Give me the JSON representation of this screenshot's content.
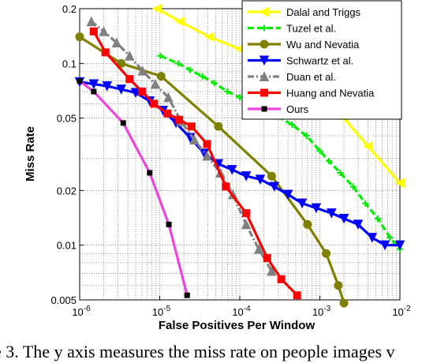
{
  "chart_data": {
    "type": "line",
    "xlabel": "False Positives Per Window",
    "ylabel": "Miss Rate",
    "x_scale": "log",
    "y_scale": "log",
    "xlim": [
      1e-06,
      0.01
    ],
    "ylim": [
      0.005,
      0.2
    ],
    "x_ticks": [
      {
        "value": 1e-06,
        "base": "10",
        "exp": "-6"
      },
      {
        "value": 1e-05,
        "base": "10",
        "exp": "-5"
      },
      {
        "value": 0.0001,
        "base": "10",
        "exp": "-4"
      },
      {
        "value": 0.001,
        "base": "10",
        "exp": "-3"
      },
      {
        "value": 0.01,
        "base": "10",
        "exp": "-2"
      }
    ],
    "y_ticks": [
      {
        "value": 0.2,
        "label": "0.2"
      },
      {
        "value": 0.1,
        "label": "0.1"
      },
      {
        "value": 0.05,
        "label": "0.05"
      },
      {
        "value": 0.02,
        "label": "0.02"
      },
      {
        "value": 0.01,
        "label": "0.01"
      },
      {
        "value": 0.005,
        "label": "0.005"
      }
    ],
    "grid": true,
    "legend_position": "top-right",
    "series": [
      {
        "name": "Dalal and Triggs",
        "color": "#ffff00",
        "marker": "triangle-left",
        "dash": "solid",
        "x": [
          9.3e-06,
          1.8e-05,
          4.2e-05,
          0.0001,
          0.0002,
          0.00045,
          0.001,
          0.002,
          0.004,
          0.01
        ],
        "y": [
          0.2,
          0.17,
          0.14,
          0.12,
          0.105,
          0.09,
          0.07,
          0.05,
          0.035,
          0.022
        ]
      },
      {
        "name": "Tuzel et al.",
        "color": "#00ee00",
        "marker": "plus",
        "dash": "dash",
        "x": [
          1.02e-05,
          1.7e-05,
          2.4e-05,
          3.4e-05,
          4.8e-05,
          7e-05,
          0.0001,
          0.00014,
          0.0002,
          0.0003,
          0.00045,
          0.00068,
          0.001,
          0.0013,
          0.0018,
          0.0026,
          0.0037,
          0.0053,
          0.0075,
          0.01
        ],
        "y": [
          0.11,
          0.1,
          0.092,
          0.085,
          0.078,
          0.07,
          0.065,
          0.062,
          0.058,
          0.051,
          0.046,
          0.04,
          0.033,
          0.029,
          0.025,
          0.021,
          0.017,
          0.014,
          0.011,
          0.0095
        ]
      },
      {
        "name": "Wu and Nevatia",
        "color": "#808000",
        "marker": "circle",
        "dash": "solid",
        "x": [
          1e-06,
          3.3e-06,
          1.04e-05,
          5.4e-05,
          0.00025,
          0.0007,
          0.0012,
          0.0017,
          0.002
        ],
        "y": [
          0.14,
          0.1,
          0.085,
          0.045,
          0.024,
          0.013,
          0.009,
          0.006,
          0.0048
        ]
      },
      {
        "name": "Schwartz et al.",
        "color": "#0000ff",
        "marker": "triangle-down",
        "dash": "solid",
        "x": [
          1e-06,
          1.5e-06,
          2.2e-06,
          3.3e-06,
          5e-06,
          7.5e-06,
          1.1e-05,
          1.6e-05,
          2.4e-05,
          3.6e-05,
          5.4e-05,
          8e-05,
          0.00012,
          0.00018,
          0.00027,
          0.0004,
          0.0006,
          0.0009,
          0.0014,
          0.002,
          0.003,
          0.0045,
          0.0065,
          0.01
        ],
        "y": [
          0.079,
          0.077,
          0.075,
          0.072,
          0.069,
          0.062,
          0.055,
          0.047,
          0.039,
          0.032,
          0.028,
          0.026,
          0.024,
          0.023,
          0.021,
          0.019,
          0.017,
          0.016,
          0.015,
          0.014,
          0.013,
          0.011,
          0.01,
          0.01
        ]
      },
      {
        "name": "Duan et al.",
        "color": "#808080",
        "marker": "triangle-up",
        "dash": "dashdot",
        "x": [
          1.4e-06,
          2e-06,
          2.9e-06,
          4.2e-06,
          6.1e-06,
          8.8e-06,
          1.28e-05,
          1.85e-05,
          2.7e-05,
          3.9e-05,
          5.7e-05,
          8.2e-05,
          0.00012,
          0.000173,
          0.00025
        ],
        "y": [
          0.17,
          0.15,
          0.13,
          0.11,
          0.091,
          0.077,
          0.065,
          0.048,
          0.038,
          0.031,
          0.025,
          0.019,
          0.013,
          0.0095,
          0.0072
        ]
      },
      {
        "name": "Huang and Nevatia",
        "color": "#ff0000",
        "marker": "square",
        "dash": "solid",
        "x": [
          1.5e-06,
          2.1e-06,
          4.2e-06,
          6e-06,
          8.5e-06,
          1.25e-05,
          1.75e-05,
          2.5e-05,
          3.9e-05,
          6.7e-05,
          0.00012,
          0.00022,
          0.00033,
          0.00052
        ],
        "y": [
          0.15,
          0.115,
          0.082,
          0.07,
          0.06,
          0.053,
          0.049,
          0.045,
          0.036,
          0.021,
          0.015,
          0.0085,
          0.0065,
          0.0053
        ]
      },
      {
        "name": "Ours",
        "color": "#ee44dd",
        "marker": "dot-square",
        "dash": "solid",
        "x": [
          1e-06,
          1.5e-06,
          3.5e-06,
          7.5e-06,
          1.3e-05,
          2.2e-05
        ],
        "y": [
          0.08,
          0.07,
          0.047,
          0.025,
          0.013,
          0.0053
        ]
      }
    ]
  },
  "caption": "e 3. The y axis measures the miss rate on people images v"
}
